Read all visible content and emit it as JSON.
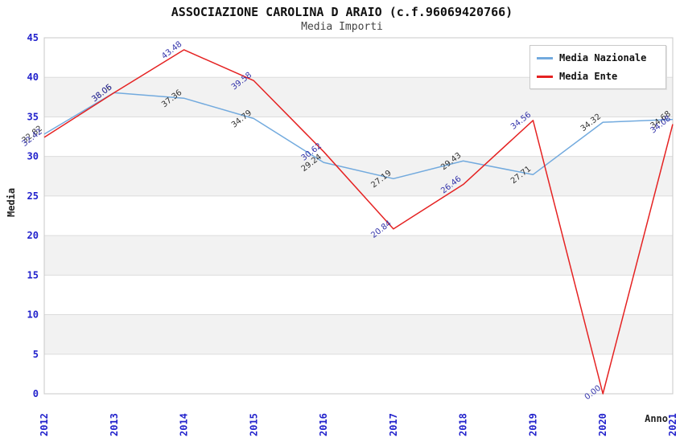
{
  "header": {
    "title": "ASSOCIAZIONE CAROLINA D ARAIO (c.f.96069420766)",
    "subtitle": "Media Importi"
  },
  "chart_data": {
    "type": "line",
    "x": [
      2012,
      2013,
      2014,
      2015,
      2016,
      2017,
      2018,
      2019,
      2020,
      2021
    ],
    "series": [
      {
        "name": "Media Nazionale",
        "color": "#72aade",
        "label_color": "#333333",
        "values": [
          32.82,
          38.06,
          37.36,
          34.79,
          29.24,
          27.19,
          29.43,
          27.71,
          34.32,
          34.68
        ]
      },
      {
        "name": "Media Ente",
        "color": "#e52222",
        "label_color": "#3333aa",
        "values": [
          32.42,
          38.05,
          43.48,
          39.58,
          30.62,
          20.84,
          26.46,
          34.56,
          0.0,
          34.08
        ]
      }
    ],
    "xlabel": "Anno",
    "ylabel": "Media",
    "ylim": [
      0,
      45
    ],
    "ytick_step": 5,
    "grid": true,
    "legend_position": "top-right",
    "tick_color": "#2222cc",
    "gridline_color": "#dcdcdc",
    "frame_color": "#c8c8c8",
    "band_colors": [
      "#ffffff",
      "#f2f2f2"
    ]
  }
}
